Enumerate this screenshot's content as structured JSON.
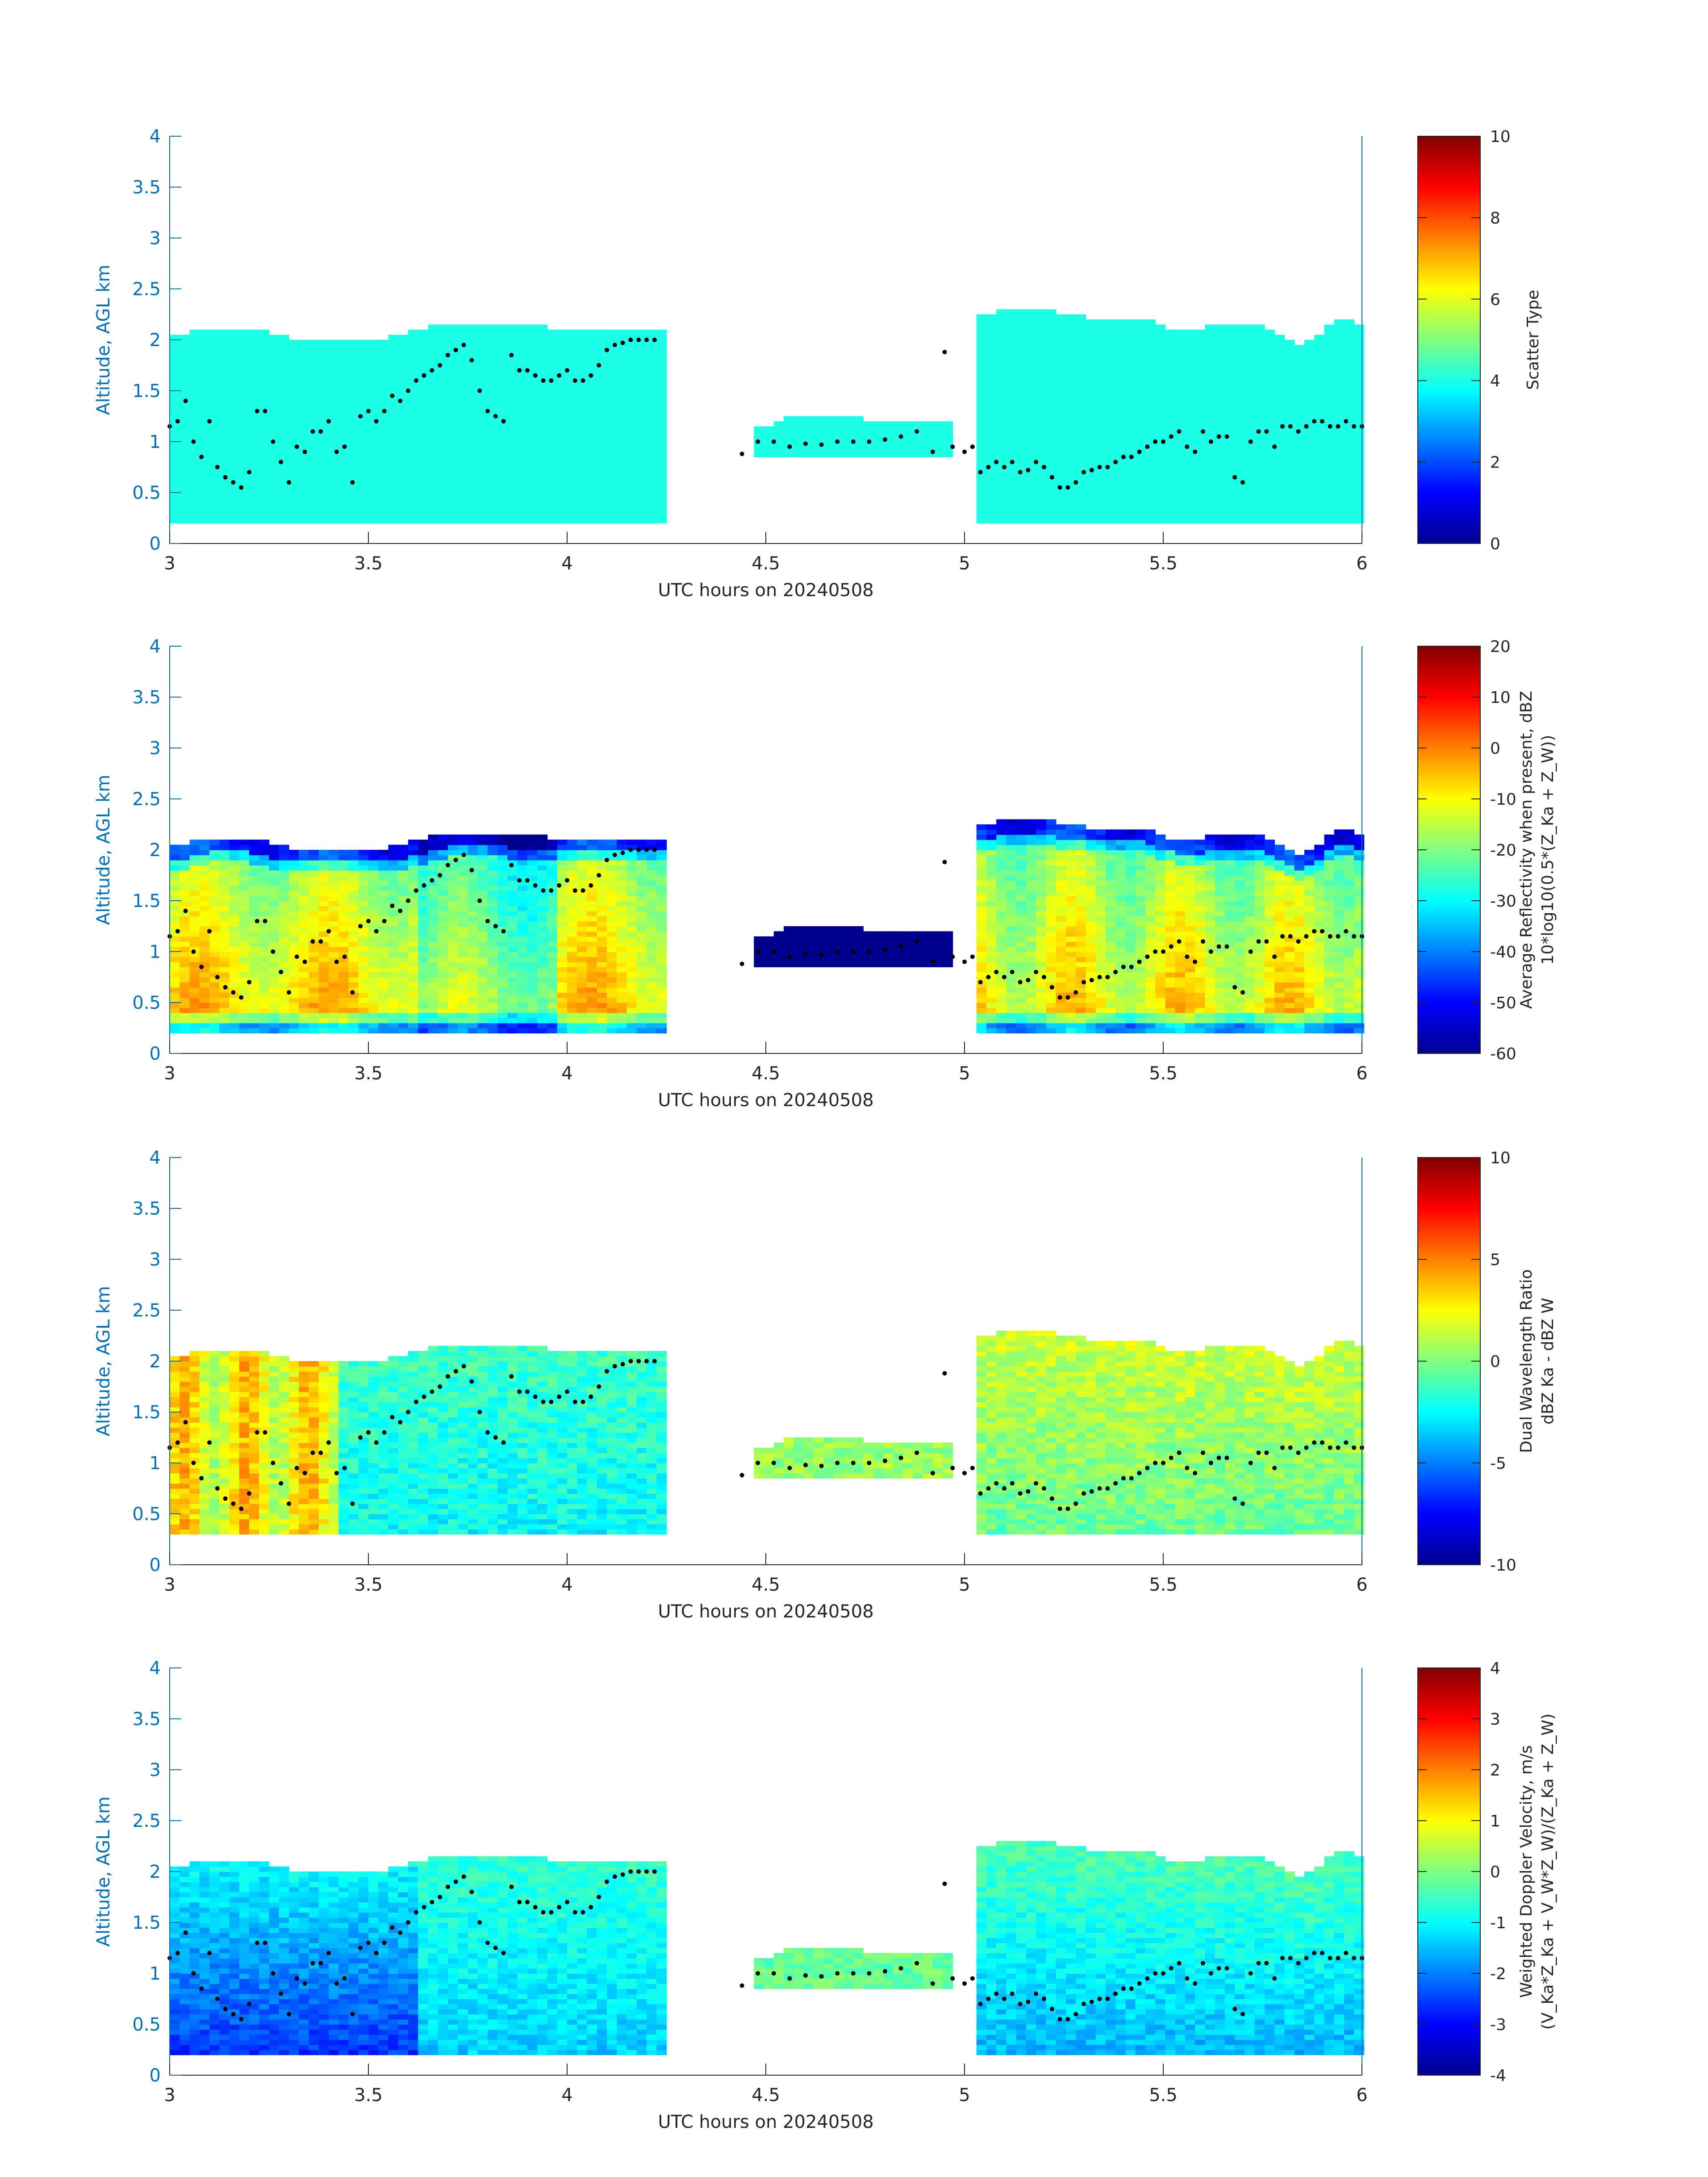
{
  "figure": {
    "panels": [
      {
        "id": "scatter-type",
        "cbar_label_lines": [
          "Scatter Type"
        ],
        "cbar_range": [
          0,
          10
        ],
        "cbar_ticks": [
          "0",
          "2",
          "4",
          "6",
          "8",
          "10"
        ]
      },
      {
        "id": "average-reflectivity",
        "cbar_label_lines": [
          "Average Reflectivity when present, dBZ",
          "10*log10(0.5*(Z_Ka + Z_W))"
        ],
        "cbar_range": [
          -60,
          20
        ],
        "cbar_ticks": [
          "-60",
          "-50",
          "-40",
          "-30",
          "-20",
          "-10",
          "0",
          "10",
          "20"
        ]
      },
      {
        "id": "dual-wavelength-ratio",
        "cbar_label_lines": [
          "Dual Wavelength Ratio",
          "dBZ Ka - dBZ W"
        ],
        "cbar_range": [
          -10,
          10
        ],
        "cbar_ticks": [
          "-10",
          "-5",
          "0",
          "5",
          "10"
        ]
      },
      {
        "id": "weighted-doppler-velocity",
        "cbar_label_lines": [
          "Weighted Doppler Velocity, m/s",
          "(V_Ka*Z_Ka + V_W*Z_W)/(Z_Ka + Z_W)"
        ],
        "cbar_range": [
          -4,
          4
        ],
        "cbar_ticks": [
          "-4",
          "-3",
          "-2",
          "-1",
          "0",
          "1",
          "2",
          "3",
          "4"
        ]
      }
    ]
  },
  "chart_data": {
    "type": "heatmap",
    "xlabel": "UTC hours on 20240508",
    "ylabel": "Altitude, AGL km",
    "xlim": [
      3,
      6
    ],
    "ylim": [
      0,
      4
    ],
    "xticks": [
      "3",
      "3.5",
      "4",
      "4.5",
      "5",
      "5.5",
      "6"
    ],
    "yticks": [
      "0",
      "0.5",
      "1",
      "1.5",
      "2",
      "2.5",
      "3",
      "3.5",
      "4"
    ],
    "grid": false,
    "colormap": "jet",
    "cloud_segments": [
      {
        "x": [
          3.0,
          4.23
        ],
        "bottom_km": 0.2,
        "top_km": [
          [
            3.0,
            2.0
          ],
          [
            3.1,
            2.1
          ],
          [
            3.2,
            2.1
          ],
          [
            3.3,
            2.0
          ],
          [
            3.4,
            2.0
          ],
          [
            3.55,
            2.0
          ],
          [
            3.7,
            2.15
          ],
          [
            3.85,
            2.15
          ],
          [
            3.95,
            2.1
          ],
          [
            4.1,
            2.1
          ],
          [
            4.23,
            2.1
          ]
        ]
      },
      {
        "x": [
          4.47,
          4.95
        ],
        "bottom_km": 0.85,
        "top_km": [
          [
            4.47,
            1.1
          ],
          [
            4.55,
            1.2
          ],
          [
            4.65,
            1.25
          ],
          [
            4.75,
            1.2
          ],
          [
            4.85,
            1.2
          ],
          [
            4.95,
            1.2
          ]
        ]
      },
      {
        "x": [
          5.03,
          6.0
        ],
        "bottom_km": 0.2,
        "top_km": [
          [
            5.03,
            2.2
          ],
          [
            5.15,
            2.3
          ],
          [
            5.3,
            2.2
          ],
          [
            5.45,
            2.2
          ],
          [
            5.55,
            2.05
          ],
          [
            5.65,
            2.15
          ],
          [
            5.75,
            2.1
          ],
          [
            5.85,
            1.9
          ],
          [
            5.95,
            2.2
          ],
          [
            6.0,
            2.1
          ]
        ]
      }
    ],
    "marker_line": [
      [
        3.0,
        1.15
      ],
      [
        3.02,
        1.2
      ],
      [
        3.04,
        1.4
      ],
      [
        3.06,
        1.0
      ],
      [
        3.08,
        0.85
      ],
      [
        3.1,
        1.2
      ],
      [
        3.12,
        0.75
      ],
      [
        3.14,
        0.65
      ],
      [
        3.16,
        0.6
      ],
      [
        3.18,
        0.55
      ],
      [
        3.2,
        0.7
      ],
      [
        3.22,
        1.3
      ],
      [
        3.24,
        1.3
      ],
      [
        3.26,
        1.0
      ],
      [
        3.28,
        0.8
      ],
      [
        3.3,
        0.6
      ],
      [
        3.32,
        0.95
      ],
      [
        3.34,
        0.9
      ],
      [
        3.36,
        1.1
      ],
      [
        3.38,
        1.1
      ],
      [
        3.4,
        1.2
      ],
      [
        3.42,
        0.9
      ],
      [
        3.44,
        0.95
      ],
      [
        3.46,
        0.6
      ],
      [
        3.48,
        1.25
      ],
      [
        3.5,
        1.3
      ],
      [
        3.52,
        1.2
      ],
      [
        3.54,
        1.3
      ],
      [
        3.56,
        1.45
      ],
      [
        3.58,
        1.4
      ],
      [
        3.6,
        1.5
      ],
      [
        3.62,
        1.6
      ],
      [
        3.64,
        1.65
      ],
      [
        3.66,
        1.7
      ],
      [
        3.68,
        1.75
      ],
      [
        3.7,
        1.85
      ],
      [
        3.72,
        1.9
      ],
      [
        3.74,
        1.95
      ],
      [
        3.76,
        1.8
      ],
      [
        3.78,
        1.5
      ],
      [
        3.8,
        1.3
      ],
      [
        3.82,
        1.25
      ],
      [
        3.84,
        1.2
      ],
      [
        3.86,
        1.85
      ],
      [
        3.88,
        1.7
      ],
      [
        3.9,
        1.7
      ],
      [
        3.92,
        1.65
      ],
      [
        3.94,
        1.6
      ],
      [
        3.96,
        1.6
      ],
      [
        3.98,
        1.65
      ],
      [
        4.0,
        1.7
      ],
      [
        4.02,
        1.6
      ],
      [
        4.04,
        1.6
      ],
      [
        4.06,
        1.65
      ],
      [
        4.08,
        1.75
      ],
      [
        4.1,
        1.9
      ],
      [
        4.12,
        1.95
      ],
      [
        4.14,
        1.97
      ],
      [
        4.16,
        2.0
      ],
      [
        4.18,
        2.0
      ],
      [
        4.2,
        2.0
      ],
      [
        4.22,
        2.0
      ],
      [
        4.44,
        0.88
      ],
      [
        4.48,
        1.0
      ],
      [
        4.52,
        1.0
      ],
      [
        4.56,
        0.95
      ],
      [
        4.6,
        0.98
      ],
      [
        4.64,
        0.97
      ],
      [
        4.68,
        1.0
      ],
      [
        4.72,
        1.0
      ],
      [
        4.76,
        1.0
      ],
      [
        4.8,
        1.02
      ],
      [
        4.84,
        1.05
      ],
      [
        4.88,
        1.1
      ],
      [
        4.92,
        0.9
      ],
      [
        4.95,
        1.88
      ],
      [
        4.97,
        0.95
      ],
      [
        5.0,
        0.9
      ],
      [
        5.02,
        0.95
      ],
      [
        5.04,
        0.7
      ],
      [
        5.06,
        0.75
      ],
      [
        5.08,
        0.8
      ],
      [
        5.1,
        0.75
      ],
      [
        5.12,
        0.8
      ],
      [
        5.14,
        0.7
      ],
      [
        5.16,
        0.72
      ],
      [
        5.18,
        0.8
      ],
      [
        5.2,
        0.75
      ],
      [
        5.22,
        0.65
      ],
      [
        5.24,
        0.55
      ],
      [
        5.26,
        0.55
      ],
      [
        5.28,
        0.6
      ],
      [
        5.3,
        0.7
      ],
      [
        5.32,
        0.72
      ],
      [
        5.34,
        0.75
      ],
      [
        5.36,
        0.75
      ],
      [
        5.38,
        0.8
      ],
      [
        5.4,
        0.85
      ],
      [
        5.42,
        0.85
      ],
      [
        5.44,
        0.9
      ],
      [
        5.46,
        0.95
      ],
      [
        5.48,
        1.0
      ],
      [
        5.5,
        1.0
      ],
      [
        5.52,
        1.05
      ],
      [
        5.54,
        1.1
      ],
      [
        5.56,
        0.95
      ],
      [
        5.58,
        0.9
      ],
      [
        5.6,
        1.1
      ],
      [
        5.62,
        1.0
      ],
      [
        5.64,
        1.05
      ],
      [
        5.66,
        1.05
      ],
      [
        5.68,
        0.65
      ],
      [
        5.7,
        0.6
      ],
      [
        5.72,
        1.0
      ],
      [
        5.74,
        1.1
      ],
      [
        5.76,
        1.1
      ],
      [
        5.78,
        0.95
      ],
      [
        5.8,
        1.15
      ],
      [
        5.82,
        1.15
      ],
      [
        5.84,
        1.1
      ],
      [
        5.86,
        1.15
      ],
      [
        5.88,
        1.2
      ],
      [
        5.9,
        1.2
      ],
      [
        5.92,
        1.15
      ],
      [
        5.94,
        1.15
      ],
      [
        5.96,
        1.2
      ],
      [
        5.98,
        1.15
      ],
      [
        6.0,
        1.15
      ]
    ]
  }
}
